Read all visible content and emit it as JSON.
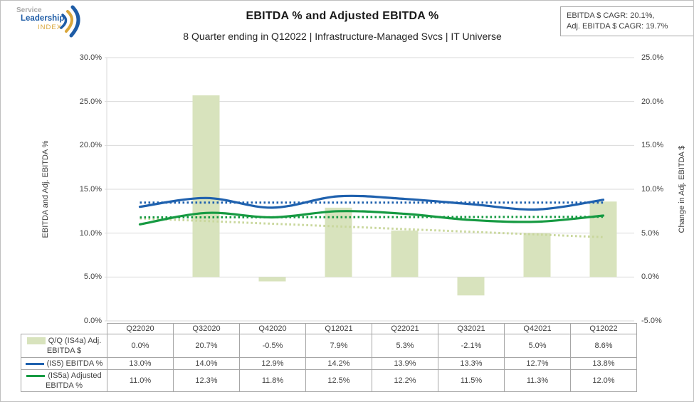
{
  "logo": {
    "word1": "Service",
    "word2": "Leadership",
    "word3": "INDEX"
  },
  "header": {
    "title": "EBITDA % and Adjusted EBITDA %",
    "subtitle": "8 Quarter ending in Q12022 | Infrastructure-Managed Svcs | IT Universe"
  },
  "cagr_box": {
    "line1": "EBITDA $ CAGR: 20.1%,",
    "line2": "Adj. EBITDA $ CAGR: 19.7%"
  },
  "chart_data": {
    "type": "combo",
    "categories": [
      "Q22020",
      "Q32020",
      "Q42020",
      "Q12021",
      "Q22021",
      "Q32021",
      "Q42021",
      "Q12022"
    ],
    "series": [
      {
        "name": "Q/Q (IS4a) Adj. EBITDA $",
        "type": "bar",
        "axis": "right",
        "color": "#d8e3bd",
        "trend_color": "#c9d79c",
        "values": [
          0.0,
          20.7,
          -0.5,
          7.9,
          5.3,
          -2.1,
          5.0,
          8.6
        ]
      },
      {
        "name": "(IS5) EBITDA %",
        "type": "line",
        "axis": "left",
        "color": "#1f61ae",
        "trend_color": "#1f61ae",
        "values": [
          13.0,
          14.0,
          12.9,
          14.2,
          13.9,
          13.3,
          12.7,
          13.8
        ]
      },
      {
        "name": "(IS5a) Adjusted EBITDA %",
        "type": "line",
        "axis": "left",
        "color": "#169a42",
        "trend_color": "#169a42",
        "values": [
          11.0,
          12.3,
          11.8,
          12.5,
          12.2,
          11.5,
          11.3,
          12.0
        ]
      }
    ],
    "left_axis": {
      "title": "EBITDA and Adj. EBITDA %",
      "min": 0,
      "max": 30,
      "step": 5,
      "ticks": [
        "30.0%",
        "25.0%",
        "20.0%",
        "15.0%",
        "10.0%",
        "5.0%",
        "0.0%"
      ]
    },
    "right_axis": {
      "title": "Change in Adj. EBITDA $",
      "min": -5,
      "max": 25,
      "step": 5,
      "ticks": [
        "25.0%",
        "20.0%",
        "15.0%",
        "10.0%",
        "5.0%",
        "0.0%",
        "-5.0%"
      ]
    },
    "grid": true,
    "smooth_lines": true,
    "trendlines": "linear, dotted, one per series",
    "legend_position": "table left column"
  },
  "table": {
    "columns": [
      "Q22020",
      "Q32020",
      "Q42020",
      "Q12021",
      "Q22021",
      "Q32021",
      "Q42021",
      "Q12022"
    ],
    "rows": [
      {
        "label": "Q/Q (IS4a) Adj. EBITDA $",
        "swatch": "bar",
        "values": [
          "0.0%",
          "20.7%",
          "-0.5%",
          "7.9%",
          "5.3%",
          "-2.1%",
          "5.0%",
          "8.6%"
        ]
      },
      {
        "label": "(IS5) EBITDA %",
        "swatch": "line-blue",
        "values": [
          "13.0%",
          "14.0%",
          "12.9%",
          "14.2%",
          "13.9%",
          "13.3%",
          "12.7%",
          "13.8%"
        ]
      },
      {
        "label": "(IS5a) Adjusted EBITDA %",
        "swatch": "line-green",
        "values": [
          "11.0%",
          "12.3%",
          "11.8%",
          "12.5%",
          "12.2%",
          "11.5%",
          "11.3%",
          "12.0%"
        ]
      }
    ]
  },
  "colors": {
    "bar_fill": "#d8e3bd",
    "bar_trend": "#c9d79c",
    "ebitda_line": "#1f61ae",
    "adj_ebitda_line": "#169a42",
    "gridline": "#d9d9d9",
    "table_border": "#a6a6a6",
    "logo_blue": "#1e5ca6",
    "logo_gold": "#d9a63a",
    "logo_gray": "#a8a8a8"
  }
}
